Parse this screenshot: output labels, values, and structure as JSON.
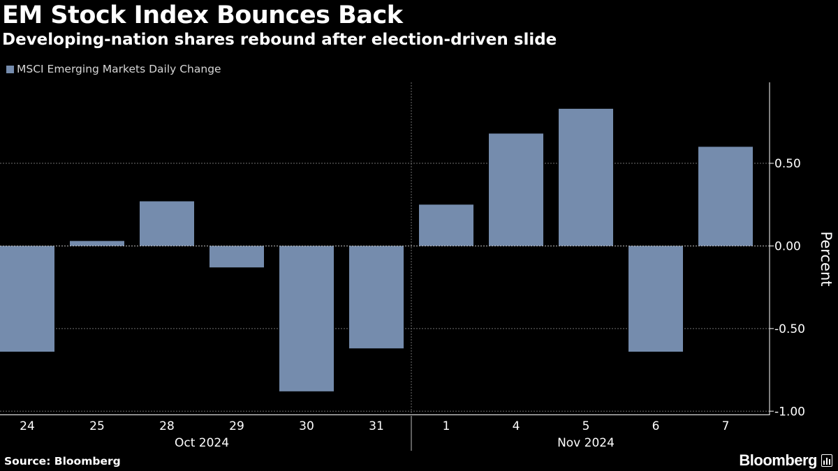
{
  "header": {
    "title": "EM Stock Index Bounces Back",
    "subtitle": "Developing-nation shares rebound after election-driven slide"
  },
  "footer": {
    "source": "Source: Bloomberg",
    "brand": "Bloomberg"
  },
  "icons": {
    "brand_icon": "bloomberg-terminal-icon"
  },
  "colors": {
    "bar": "#758cad",
    "background": "#000000",
    "grid": "#707070"
  },
  "chart_data": {
    "type": "bar",
    "title": "EM Stock Index Bounces Back",
    "subtitle": "Developing-nation shares rebound after election-driven slide",
    "ylabel": "Percent",
    "xlabel": "",
    "categories": [
      "24",
      "25",
      "28",
      "29",
      "30",
      "31",
      "1",
      "4",
      "5",
      "6",
      "7"
    ],
    "month_groups": [
      {
        "label": "Oct 2024",
        "categories": [
          "24",
          "25",
          "28",
          "29",
          "30",
          "31"
        ]
      },
      {
        "label": "Nov 2024",
        "categories": [
          "1",
          "4",
          "5",
          "6",
          "7"
        ]
      }
    ],
    "series": [
      {
        "name": "MSCI Emerging Markets Daily Change",
        "values": [
          -0.64,
          0.03,
          0.27,
          -0.13,
          -0.88,
          -0.62,
          0.25,
          0.68,
          0.83,
          -0.64,
          0.6
        ]
      }
    ],
    "ylim": [
      -1.02,
      0.99
    ],
    "yticks": [
      0.5,
      0.0,
      -0.5,
      -1.0
    ],
    "ytick_labels": [
      "0.50",
      "0.00",
      "-0.50",
      "-1.00"
    ],
    "y_axis_position": "right",
    "grid": true,
    "legend_position": "top-left"
  }
}
